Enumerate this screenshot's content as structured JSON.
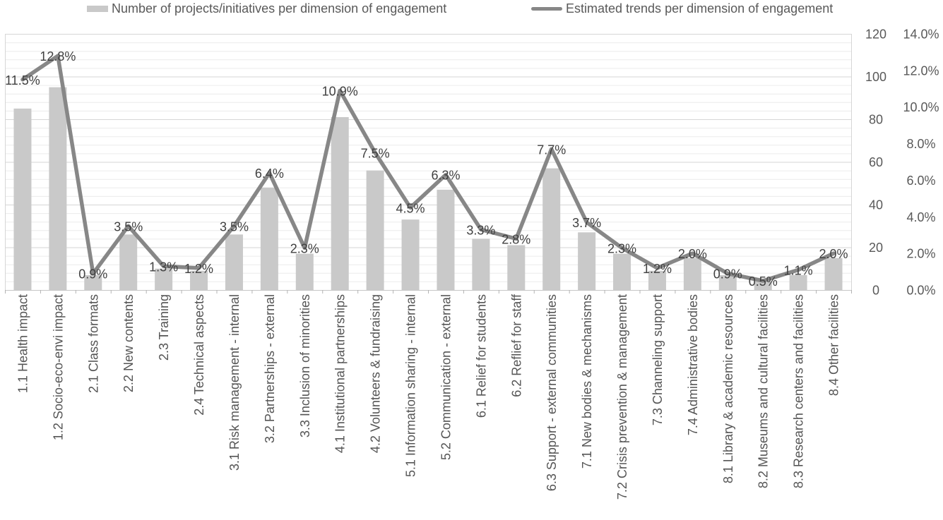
{
  "chart_data": {
    "type": "combo-bar-line",
    "title": "",
    "legend_position": "top",
    "legend": [
      {
        "label": "Number of projects/initiatives per dimension of engagement",
        "type": "bar",
        "color": "#c9c9c9"
      },
      {
        "label": "Estimated trends per dimension of engagement",
        "type": "line",
        "color": "#878787"
      }
    ],
    "categories": [
      "1.1 Health impact",
      "1.2 Socio-eco-envi impact",
      "2.1 Class formats",
      "2.2 New contents",
      "2.3 Training",
      "2.4 Technical aspects",
      "3.1 Risk management - internal",
      "3.2 Partnerships - external",
      "3.3 Inclusion of minorities",
      "4.1 Institutional partnerships",
      "4.2 Volunteers & fundraising",
      "5.1 Information sharing - internal",
      "5.2 Communication - external",
      "6.1 Relief for students",
      "6.2 Reflief for staff",
      "6.3 Support - external communities",
      "7.1 New bodies & mechanisms",
      "7.2 Crisis prevention & management",
      "7.3 Channeling support",
      "7.4 Administrative bodies",
      "8.1 Library & academic resources",
      "8.2 Museums and cultural facilities",
      "8.3 Research centers and facilities",
      "8.4 Other facilities"
    ],
    "series": [
      {
        "name": "Number of projects/initiatives per dimension of engagement",
        "type": "bar",
        "axis": "left",
        "color": "#c9c9c9",
        "values": [
          85,
          95,
          7,
          26,
          10,
          9,
          26,
          48,
          17,
          81,
          56,
          33,
          47,
          24,
          21,
          57,
          27,
          17,
          9,
          15,
          7,
          4,
          7,
          15
        ]
      },
      {
        "name": "Estimated trends per dimension of engagement",
        "type": "line",
        "axis": "right",
        "color": "#878787",
        "values": [
          11.5,
          12.8,
          0.9,
          3.5,
          1.3,
          1.2,
          3.5,
          6.4,
          2.3,
          10.9,
          7.5,
          4.5,
          6.3,
          3.3,
          2.8,
          7.7,
          3.7,
          2.3,
          1.2,
          2.0,
          0.9,
          0.5,
          1.1,
          2.0
        ],
        "point_labels": [
          "11.5%",
          "12.8%",
          "0.9%",
          "3.5%",
          "1.3%",
          "1.2%",
          "3.5%",
          "6.4%",
          "2.3%",
          "10.9%",
          "7.5%",
          "4.5%",
          "6.3%",
          "3.3%",
          "2.8%",
          "7.7%",
          "3.7%",
          "2.3%",
          "1.2%",
          "2.0%",
          "0.9%",
          "0.5%",
          "1.1%",
          "2.0%"
        ]
      }
    ],
    "axes": {
      "left": {
        "min": 0,
        "max": 120,
        "major_step": 20,
        "minor_step": 4,
        "tick_labels": [
          "120",
          "100",
          "80",
          "60",
          "40",
          "20",
          "0"
        ]
      },
      "right": {
        "min": 0,
        "max": 14,
        "major_step": 2,
        "tick_labels": [
          "14.0%",
          "12.0%",
          "10.0%",
          "8.0%",
          "6.0%",
          "4.0%",
          "2.0%",
          "0.0%"
        ]
      }
    },
    "grid": {
      "major": "horizontal",
      "minor": "horizontal"
    }
  },
  "colors": {
    "background": "#ffffff",
    "bar_fill": "#c9c9c9",
    "trend_line": "#878787",
    "grid_major": "#d6d6d6",
    "grid_minor": "#ececec",
    "axis_line": "#c6c6c6",
    "axis_tick": "#b3b3b3",
    "data_label_text": "#404040",
    "axis_label_text": "#595959",
    "category_text": "#555555",
    "legend_text": "#595959"
  }
}
